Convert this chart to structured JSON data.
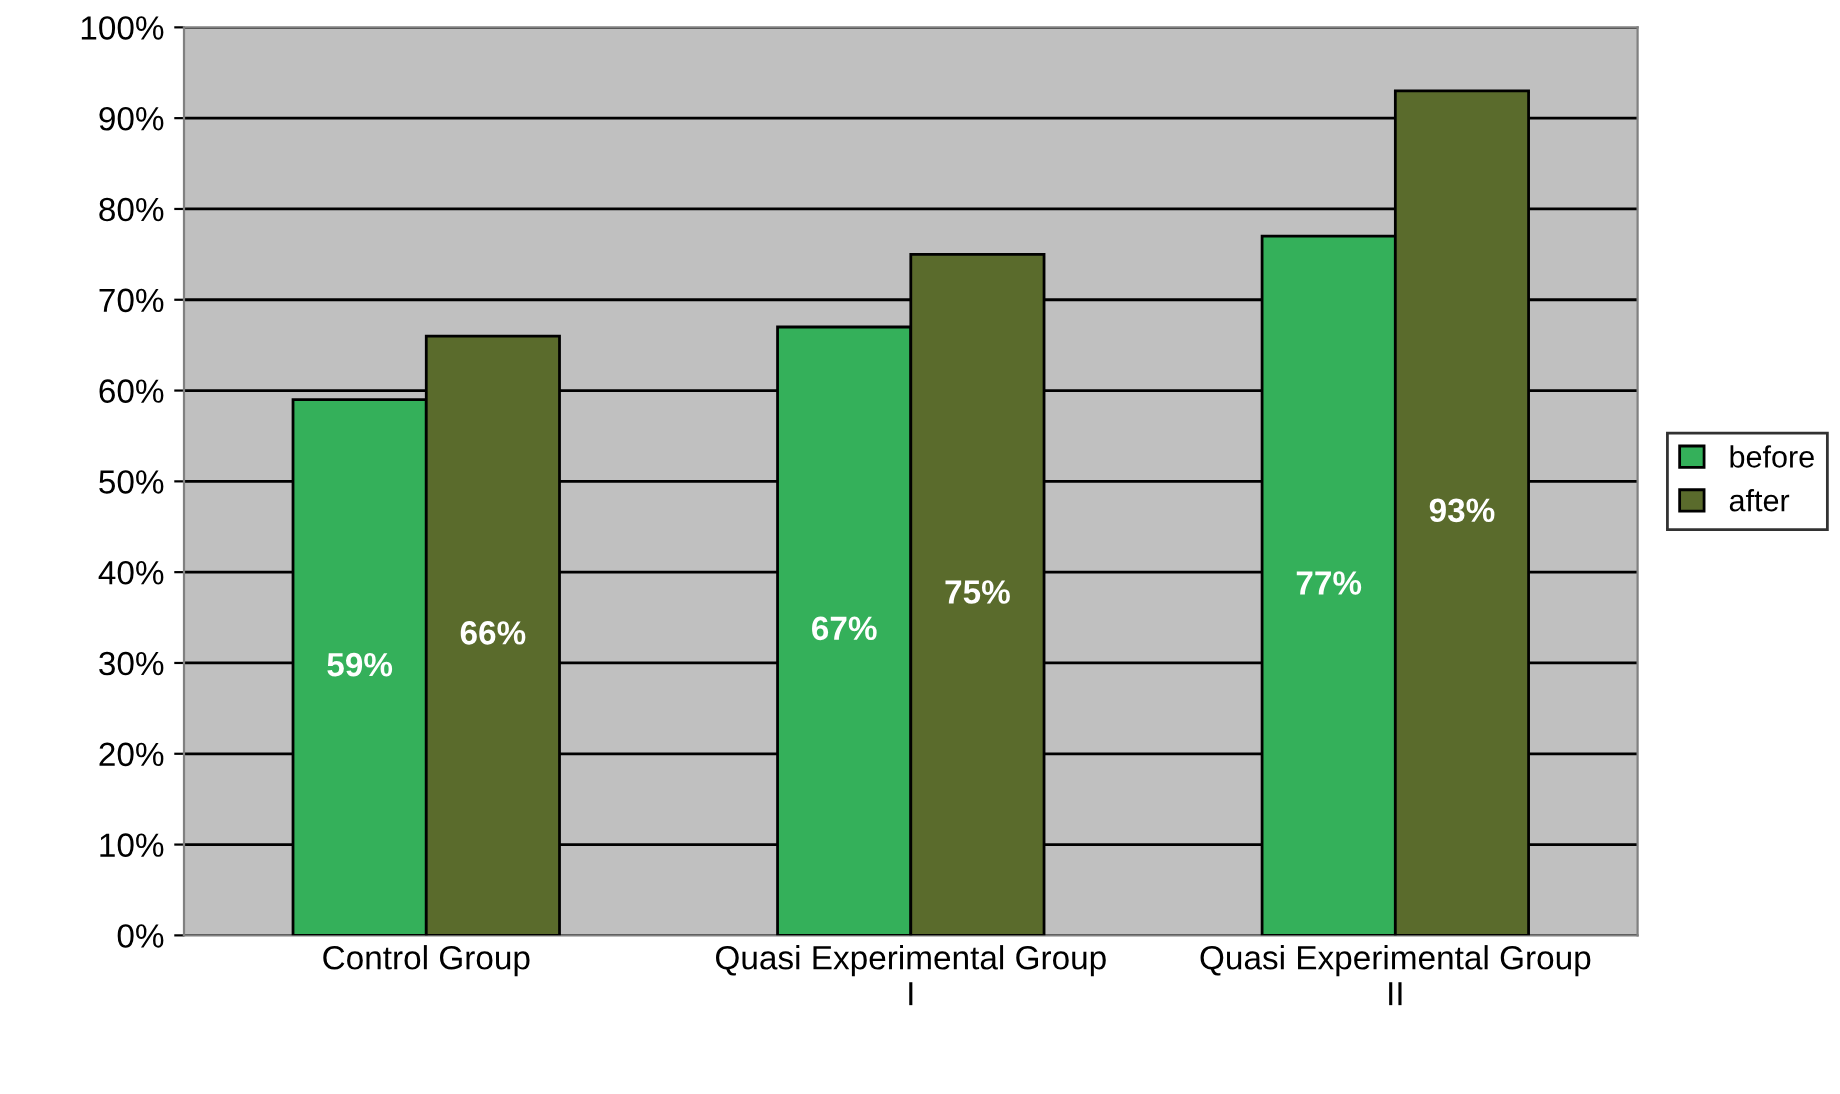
{
  "chart_data": {
    "type": "bar",
    "categories": [
      "Control Group",
      "Quasi Experimental Group\nI",
      "Quasi Experimental Group\nII"
    ],
    "series": [
      {
        "name": "before",
        "color": "#34b05a",
        "values": [
          59,
          67,
          77
        ],
        "value_labels": [
          "59%",
          "67%",
          "77%"
        ]
      },
      {
        "name": "after",
        "color": "#5a6b2c",
        "values": [
          66,
          75,
          93
        ],
        "value_labels": [
          "66%",
          "75%",
          "93%"
        ]
      }
    ],
    "ylim": [
      0,
      100
    ],
    "yticks": [
      {
        "value": 0,
        "label": "0%"
      },
      {
        "value": 10,
        "label": "10%"
      },
      {
        "value": 20,
        "label": "20%"
      },
      {
        "value": 30,
        "label": "30%"
      },
      {
        "value": 40,
        "label": "40%"
      },
      {
        "value": 50,
        "label": "50%"
      },
      {
        "value": 60,
        "label": "60%"
      },
      {
        "value": 70,
        "label": "70%"
      },
      {
        "value": 80,
        "label": "80%"
      },
      {
        "value": 90,
        "label": "90%"
      },
      {
        "value": 100,
        "label": "100%"
      }
    ],
    "grid": "y",
    "legend": "right"
  }
}
